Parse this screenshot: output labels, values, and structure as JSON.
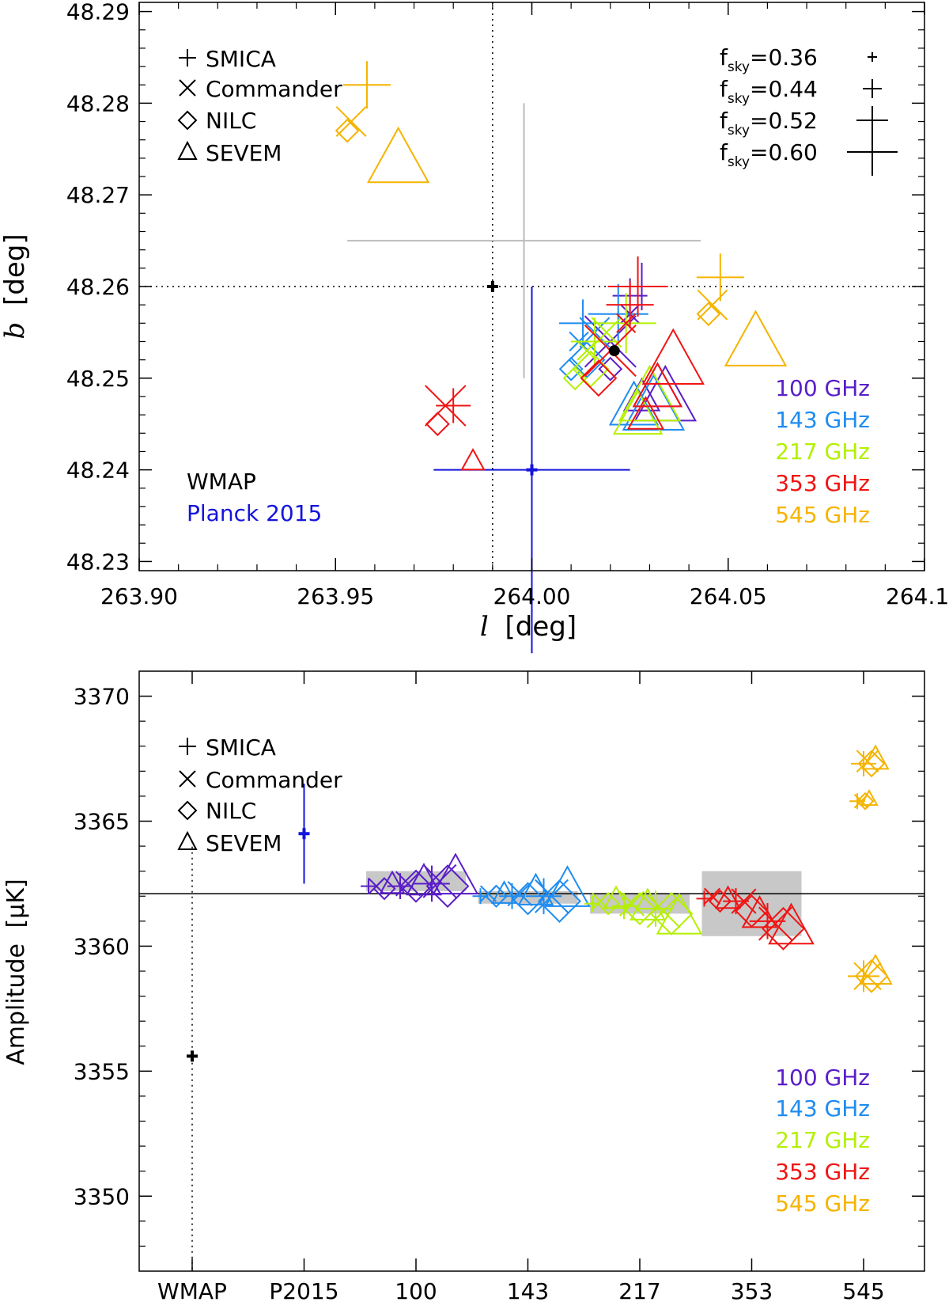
{
  "colors": {
    "100 GHz": "#5a1ec8",
    "143 GHz": "#1e8cf0",
    "217 GHz": "#b4f000",
    "353 GHz": "#f01414",
    "545 GHz": "#f5b400",
    "wmap": "#000000",
    "planck2015": "#1414dc",
    "gray": "#bbbbbb",
    "shade": "#c8c8c8"
  },
  "chart_data": [
    {
      "type": "scatter",
      "xlabel": "l",
      "ylabel": "b",
      "xunit": "[deg]",
      "yunit": "[deg]",
      "xlim": [
        263.9,
        264.1
      ],
      "ylim": [
        48.229,
        48.291
      ],
      "xticks": [
        "263.90",
        "263.95",
        "264.00",
        "264.05",
        "264.10"
      ],
      "yticks": [
        "48.23",
        "48.24",
        "48.25",
        "48.26",
        "48.27",
        "48.28",
        "48.29"
      ],
      "reference_lines": {
        "l": 263.99,
        "b": 48.26
      },
      "methods_legend": [
        {
          "symbol": "+",
          "label": "SMICA"
        },
        {
          "symbol": "x",
          "label": "Commander"
        },
        {
          "symbol": "diamond",
          "label": "NILC"
        },
        {
          "symbol": "triangle",
          "label": "SEVEM"
        }
      ],
      "fsky_legend": [
        {
          "label": "f",
          "sub": "sky",
          "value": "=0.36"
        },
        {
          "label": "f",
          "sub": "sky",
          "value": "=0.44"
        },
        {
          "label": "f",
          "sub": "sky",
          "value": "=0.52"
        },
        {
          "label": "f",
          "sub": "sky",
          "value": "=0.60"
        }
      ],
      "dataset_labels": [
        "WMAP",
        "Planck 2015"
      ],
      "band_labels": [
        "100 GHz",
        "143 GHz",
        "217 GHz",
        "353 GHz",
        "545 GHz"
      ],
      "special_points": [
        {
          "series": "WMAP",
          "l": 263.99,
          "b": 48.26,
          "l_err": 0,
          "b_err": 0
        },
        {
          "series": "Planck 2015",
          "l": 264.0,
          "b": 48.24,
          "l_err": 0.025,
          "b_err": 0.02
        },
        {
          "series": "gray",
          "l": 263.998,
          "b": 48.265,
          "l_err": 0.045,
          "b_err": 0.015
        },
        {
          "series": "mean",
          "l": 264.021,
          "b": 48.253,
          "l_err": 0,
          "b_err": 0
        }
      ],
      "series": [
        {
          "name": "100 GHz",
          "points": [
            {
              "method": "diamond",
              "l": 264.02,
              "b": 48.251
            },
            {
              "method": "triangle",
              "l": 264.028,
              "b": 48.248
            },
            {
              "method": "triangle",
              "l": 264.032,
              "b": 48.249
            },
            {
              "method": "x",
              "l": 264.02,
              "b": 48.254
            },
            {
              "method": "x",
              "l": 264.025,
              "b": 48.257
            },
            {
              "method": "+",
              "l": 264.025,
              "b": 48.259
            },
            {
              "method": "+",
              "l": 264.028,
              "b": 48.26
            },
            {
              "method": "triangle",
              "l": 264.034,
              "b": 48.248
            }
          ]
        },
        {
          "name": "143 GHz",
          "points": [
            {
              "method": "diamond",
              "l": 264.01,
              "b": 48.251
            },
            {
              "method": "diamond",
              "l": 264.014,
              "b": 48.252
            },
            {
              "method": "triangle",
              "l": 264.026,
              "b": 48.247
            },
            {
              "method": "triangle",
              "l": 264.031,
              "b": 48.247
            },
            {
              "method": "x",
              "l": 264.012,
              "b": 48.254
            },
            {
              "method": "x",
              "l": 264.016,
              "b": 48.255
            },
            {
              "method": "+",
              "l": 264.013,
              "b": 48.256
            },
            {
              "method": "+",
              "l": 264.022,
              "b": 48.257
            }
          ]
        },
        {
          "name": "217 GHz",
          "points": [
            {
              "method": "diamond",
              "l": 264.011,
              "b": 48.25
            },
            {
              "method": "diamond",
              "l": 264.015,
              "b": 48.251
            },
            {
              "method": "triangle",
              "l": 264.027,
              "b": 48.246
            },
            {
              "method": "triangle",
              "l": 264.03,
              "b": 48.248
            },
            {
              "method": "x",
              "l": 264.014,
              "b": 48.253
            },
            {
              "method": "x",
              "l": 264.019,
              "b": 48.255
            },
            {
              "method": "+",
              "l": 264.016,
              "b": 48.254
            },
            {
              "method": "+",
              "l": 264.024,
              "b": 48.256
            }
          ]
        },
        {
          "name": "353 GHz",
          "points": [
            {
              "method": "diamond",
              "l": 263.976,
              "b": 48.245
            },
            {
              "method": "diamond",
              "l": 264.017,
              "b": 48.25
            },
            {
              "method": "x",
              "l": 263.978,
              "b": 48.247
            },
            {
              "method": "x",
              "l": 264.02,
              "b": 48.253
            },
            {
              "method": "x",
              "l": 264.024,
              "b": 48.256
            },
            {
              "method": "+",
              "l": 263.98,
              "b": 48.247
            },
            {
              "method": "+",
              "l": 264.025,
              "b": 48.258
            },
            {
              "method": "+",
              "l": 264.027,
              "b": 48.26
            },
            {
              "method": "triangle",
              "l": 263.985,
              "b": 48.241
            },
            {
              "method": "triangle",
              "l": 264.029,
              "b": 48.246
            },
            {
              "method": "triangle",
              "l": 264.032,
              "b": 48.249
            },
            {
              "method": "triangle",
              "l": 264.036,
              "b": 48.252
            }
          ]
        },
        {
          "name": "545 GHz",
          "points": [
            {
              "method": "diamond",
              "l": 263.953,
              "b": 48.277
            },
            {
              "method": "x",
              "l": 263.954,
              "b": 48.278
            },
            {
              "method": "+",
              "l": 263.958,
              "b": 48.282
            },
            {
              "method": "triangle",
              "l": 263.966,
              "b": 48.274
            },
            {
              "method": "diamond",
              "l": 264.045,
              "b": 48.257
            },
            {
              "method": "x",
              "l": 264.046,
              "b": 48.258
            },
            {
              "method": "+",
              "l": 264.048,
              "b": 48.261
            },
            {
              "method": "triangle",
              "l": 264.057,
              "b": 48.254
            }
          ]
        }
      ]
    },
    {
      "type": "scatter",
      "ylabel": "Amplitude",
      "yunit": "[μK]",
      "ylim": [
        3347,
        3371
      ],
      "yticks": [
        "3350",
        "3355",
        "3360",
        "3365",
        "3370"
      ],
      "categories": [
        "WMAP",
        "P2015",
        "100",
        "143",
        "217",
        "353",
        "545"
      ],
      "reference_line": 3362.1,
      "methods_legend": [
        {
          "symbol": "+",
          "label": "SMICA"
        },
        {
          "symbol": "x",
          "label": "Commander"
        },
        {
          "symbol": "diamond",
          "label": "NILC"
        },
        {
          "symbol": "triangle",
          "label": "SEVEM"
        }
      ],
      "band_labels": [
        "100 GHz",
        "143 GHz",
        "217 GHz",
        "353 GHz",
        "545 GHz"
      ],
      "special_points": [
        {
          "series": "WMAP",
          "category": "WMAP",
          "value": 3355.6,
          "err": 0
        },
        {
          "series": "Planck 2015",
          "category": "P2015",
          "value": 3364.5,
          "err": 2.0
        }
      ],
      "shaded_ranges": [
        {
          "band": "100 GHz",
          "low": 3362.2,
          "high": 3363.0
        },
        {
          "band": "143 GHz",
          "low": 3361.7,
          "high": 3362.2
        },
        {
          "band": "217 GHz",
          "low": 3361.3,
          "high": 3362.1
        },
        {
          "band": "353 GHz",
          "low": 3360.4,
          "high": 3363.0
        }
      ],
      "series": [
        {
          "name": "100 GHz",
          "category": "100",
          "points": [
            {
              "method": "+",
              "value": 3362.4
            },
            {
              "method": "x",
              "value": 3362.4
            },
            {
              "method": "diamond",
              "value": 3362.3
            },
            {
              "method": "triangle",
              "value": 3362.5
            },
            {
              "method": "+",
              "value": 3362.4
            },
            {
              "method": "x",
              "value": 3362.5
            },
            {
              "method": "diamond",
              "value": 3362.4
            },
            {
              "method": "triangle",
              "value": 3362.6
            },
            {
              "method": "+",
              "value": 3362.5
            },
            {
              "method": "x",
              "value": 3362.6
            },
            {
              "method": "diamond",
              "value": 3362.4
            },
            {
              "method": "triangle",
              "value": 3362.8
            }
          ]
        },
        {
          "name": "143 GHz",
          "category": "143",
          "points": [
            {
              "method": "+",
              "value": 3362.0
            },
            {
              "method": "x",
              "value": 3362.1
            },
            {
              "method": "diamond",
              "value": 3362.0
            },
            {
              "method": "triangle",
              "value": 3362.1
            },
            {
              "method": "+",
              "value": 3362.0
            },
            {
              "method": "x",
              "value": 3362.1
            },
            {
              "method": "diamond",
              "value": 3361.9
            },
            {
              "method": "triangle",
              "value": 3362.2
            },
            {
              "method": "+",
              "value": 3362.0
            },
            {
              "method": "x",
              "value": 3362.0
            },
            {
              "method": "diamond",
              "value": 3361.8
            },
            {
              "method": "triangle",
              "value": 3362.3
            }
          ]
        },
        {
          "name": "217 GHz",
          "category": "217",
          "points": [
            {
              "method": "+",
              "value": 3361.7
            },
            {
              "method": "x",
              "value": 3361.8
            },
            {
              "method": "diamond",
              "value": 3361.7
            },
            {
              "method": "triangle",
              "value": 3361.9
            },
            {
              "method": "+",
              "value": 3361.6
            },
            {
              "method": "x",
              "value": 3361.7
            },
            {
              "method": "diamond",
              "value": 3361.5
            },
            {
              "method": "triangle",
              "value": 3361.6
            },
            {
              "method": "+",
              "value": 3361.5
            },
            {
              "method": "x",
              "value": 3361.4
            },
            {
              "method": "diamond",
              "value": 3361.3
            },
            {
              "method": "triangle",
              "value": 3361.2
            }
          ]
        },
        {
          "name": "353 GHz",
          "category": "353",
          "points": [
            {
              "method": "+",
              "value": 3361.9
            },
            {
              "method": "x",
              "value": 3362.0
            },
            {
              "method": "diamond",
              "value": 3361.8
            },
            {
              "method": "triangle",
              "value": 3361.9
            },
            {
              "method": "+",
              "value": 3361.8
            },
            {
              "method": "x",
              "value": 3361.8
            },
            {
              "method": "diamond",
              "value": 3361.4
            },
            {
              "method": "triangle",
              "value": 3361.3
            },
            {
              "method": "+",
              "value": 3361.0
            },
            {
              "method": "x",
              "value": 3360.9
            },
            {
              "method": "diamond",
              "value": 3360.7
            },
            {
              "method": "triangle",
              "value": 3360.8
            }
          ]
        },
        {
          "name": "545 GHz",
          "category": "545",
          "points": [
            {
              "method": "+",
              "value": 3365.8
            },
            {
              "method": "x",
              "value": 3365.8
            },
            {
              "method": "diamond",
              "value": 3365.8
            },
            {
              "method": "triangle",
              "value": 3365.9
            },
            {
              "method": "+",
              "value": 3367.3
            },
            {
              "method": "x",
              "value": 3367.4
            },
            {
              "method": "diamond",
              "value": 3367.3
            },
            {
              "method": "triangle",
              "value": 3367.5
            },
            {
              "method": "+",
              "value": 3358.8
            },
            {
              "method": "x",
              "value": 3358.8
            },
            {
              "method": "diamond",
              "value": 3358.8
            },
            {
              "method": "triangle",
              "value": 3359.0
            }
          ]
        }
      ]
    }
  ]
}
